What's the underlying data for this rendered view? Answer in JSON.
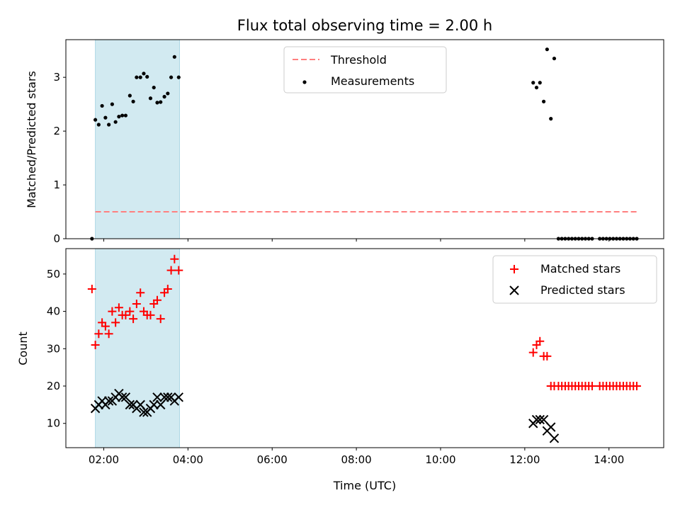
{
  "title": "Flux total observing time = 2.00 h",
  "colors": {
    "threshold": "#ff7f7f",
    "measurement": "#000000",
    "matched": "#ff0000",
    "predicted": "#000000",
    "shade": "#add8e6"
  },
  "chart_data": [
    {
      "type": "scatter",
      "ylabel": "Matched/Predicted stars",
      "xlabel": "",
      "xlim": [
        1.1,
        15.3
      ],
      "ylim": [
        0,
        3.7
      ],
      "yticks": [
        0,
        1,
        2,
        3
      ],
      "grid": false,
      "legend_position": "top-center",
      "shaded_interval": [
        "01:48",
        "03:48"
      ],
      "threshold": {
        "name": "Threshold",
        "value": 0.5,
        "x_range": [
          "01:48",
          "14:42"
        ]
      },
      "series": [
        {
          "name": "Measurements",
          "marker": "dot",
          "points": [
            [
              1.72,
              0.0
            ],
            [
              1.8,
              2.21
            ],
            [
              1.88,
              2.12
            ],
            [
              1.96,
              2.47
            ],
            [
              2.04,
              2.25
            ],
            [
              2.12,
              2.12
            ],
            [
              2.2,
              2.5
            ],
            [
              2.28,
              2.17
            ],
            [
              2.36,
              2.27
            ],
            [
              2.44,
              2.29
            ],
            [
              2.52,
              2.29
            ],
            [
              2.62,
              2.66
            ],
            [
              2.7,
              2.55
            ],
            [
              2.78,
              3.0
            ],
            [
              2.87,
              3.0
            ],
            [
              2.95,
              3.07
            ],
            [
              3.03,
              3.01
            ],
            [
              3.11,
              2.61
            ],
            [
              3.19,
              2.81
            ],
            [
              3.27,
              2.53
            ],
            [
              3.35,
              2.54
            ],
            [
              3.44,
              2.64
            ],
            [
              3.52,
              2.7
            ],
            [
              3.6,
              3.0
            ],
            [
              3.68,
              3.38
            ],
            [
              3.78,
              3.0
            ],
            [
              12.2,
              2.9
            ],
            [
              12.28,
              2.81
            ],
            [
              12.36,
              2.9
            ],
            [
              12.45,
              2.55
            ],
            [
              12.53,
              3.52
            ],
            [
              12.62,
              2.23
            ],
            [
              12.7,
              3.35
            ],
            [
              12.8,
              0.0
            ],
            [
              12.88,
              0.0
            ],
            [
              12.96,
              0.0
            ],
            [
              13.04,
              0.0
            ],
            [
              13.12,
              0.0
            ],
            [
              13.2,
              0.0
            ],
            [
              13.28,
              0.0
            ],
            [
              13.36,
              0.0
            ],
            [
              13.44,
              0.0
            ],
            [
              13.52,
              0.0
            ],
            [
              13.6,
              0.0
            ],
            [
              13.78,
              0.0
            ],
            [
              13.86,
              0.0
            ],
            [
              13.94,
              0.0
            ],
            [
              14.02,
              0.0
            ],
            [
              14.1,
              0.0
            ],
            [
              14.18,
              0.0
            ],
            [
              14.26,
              0.0
            ],
            [
              14.34,
              0.0
            ],
            [
              14.42,
              0.0
            ],
            [
              14.5,
              0.0
            ],
            [
              14.58,
              0.0
            ],
            [
              14.66,
              0.0
            ]
          ]
        }
      ]
    },
    {
      "type": "scatter",
      "ylabel": "Count",
      "xlabel": "Time (UTC)",
      "xlim": [
        1.1,
        15.3
      ],
      "ylim": [
        3.5,
        56.8
      ],
      "yticks": [
        10,
        20,
        30,
        40,
        50
      ],
      "xticks": [
        "02:00",
        "04:00",
        "06:00",
        "08:00",
        "10:00",
        "12:00",
        "14:00"
      ],
      "grid": false,
      "legend_position": "top-right",
      "shaded_interval": [
        "01:48",
        "03:48"
      ],
      "series": [
        {
          "name": "Matched stars",
          "marker": "plus",
          "points": [
            [
              1.72,
              46
            ],
            [
              1.8,
              31
            ],
            [
              1.88,
              34
            ],
            [
              1.96,
              37
            ],
            [
              2.04,
              36
            ],
            [
              2.12,
              34
            ],
            [
              2.2,
              40
            ],
            [
              2.28,
              37
            ],
            [
              2.36,
              41
            ],
            [
              2.44,
              39
            ],
            [
              2.52,
              39
            ],
            [
              2.62,
              40
            ],
            [
              2.7,
              38
            ],
            [
              2.78,
              42
            ],
            [
              2.87,
              45
            ],
            [
              2.95,
              40
            ],
            [
              3.03,
              39
            ],
            [
              3.11,
              39
            ],
            [
              3.19,
              42
            ],
            [
              3.27,
              43
            ],
            [
              3.35,
              38
            ],
            [
              3.44,
              45
            ],
            [
              3.52,
              46
            ],
            [
              3.6,
              51
            ],
            [
              3.68,
              54
            ],
            [
              3.78,
              51
            ],
            [
              12.2,
              29
            ],
            [
              12.28,
              31
            ],
            [
              12.36,
              32
            ],
            [
              12.45,
              28
            ],
            [
              12.53,
              28
            ],
            [
              12.62,
              20
            ],
            [
              12.7,
              20
            ],
            [
              12.8,
              20
            ],
            [
              12.88,
              20
            ],
            [
              12.96,
              20
            ],
            [
              13.04,
              20
            ],
            [
              13.12,
              20
            ],
            [
              13.2,
              20
            ],
            [
              13.28,
              20
            ],
            [
              13.36,
              20
            ],
            [
              13.44,
              20
            ],
            [
              13.52,
              20
            ],
            [
              13.6,
              20
            ],
            [
              13.78,
              20
            ],
            [
              13.86,
              20
            ],
            [
              13.94,
              20
            ],
            [
              14.02,
              20
            ],
            [
              14.1,
              20
            ],
            [
              14.18,
              20
            ],
            [
              14.26,
              20
            ],
            [
              14.34,
              20
            ],
            [
              14.42,
              20
            ],
            [
              14.5,
              20
            ],
            [
              14.58,
              20
            ],
            [
              14.66,
              20
            ]
          ]
        },
        {
          "name": "Predicted stars",
          "marker": "x",
          "points": [
            [
              1.8,
              14
            ],
            [
              1.88,
              15
            ],
            [
              1.96,
              16
            ],
            [
              2.04,
              15
            ],
            [
              2.12,
              16
            ],
            [
              2.2,
              16
            ],
            [
              2.28,
              17
            ],
            [
              2.36,
              18
            ],
            [
              2.44,
              17
            ],
            [
              2.52,
              17
            ],
            [
              2.62,
              15
            ],
            [
              2.7,
              15
            ],
            [
              2.78,
              14
            ],
            [
              2.87,
              15
            ],
            [
              2.95,
              13
            ],
            [
              3.03,
              13
            ],
            [
              3.11,
              14
            ],
            [
              3.19,
              15
            ],
            [
              3.27,
              17
            ],
            [
              3.35,
              15
            ],
            [
              3.44,
              17
            ],
            [
              3.52,
              17
            ],
            [
              3.6,
              17
            ],
            [
              3.68,
              16
            ],
            [
              3.78,
              17
            ],
            [
              12.2,
              10
            ],
            [
              12.28,
              11
            ],
            [
              12.36,
              11
            ],
            [
              12.45,
              11
            ],
            [
              12.53,
              8
            ],
            [
              12.62,
              9
            ],
            [
              12.7,
              6
            ]
          ]
        }
      ]
    }
  ]
}
